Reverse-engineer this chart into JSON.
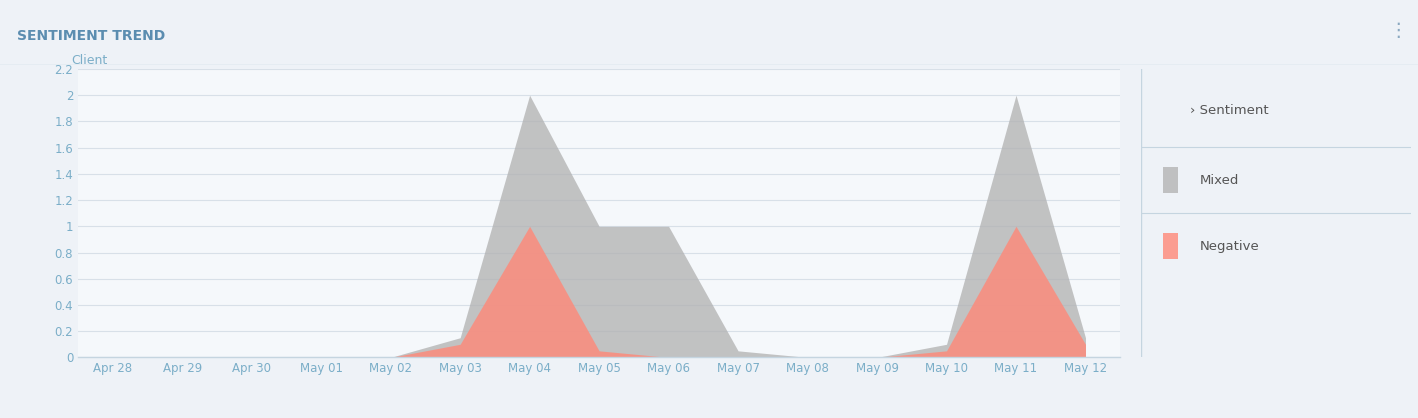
{
  "title": "SENTIMENT TREND",
  "client_label": "Client",
  "background_color": "#eef2f7",
  "plot_background": "#ffffff",
  "dates": [
    "Apr 28",
    "Apr 29",
    "Apr 30",
    "May 01",
    "May 02",
    "May 03",
    "May 04",
    "May 05",
    "May 06",
    "May 07",
    "May 08",
    "May 09",
    "May 10",
    "May 11",
    "May 12"
  ],
  "mixed_values": [
    0,
    0,
    0,
    0,
    0,
    0.15,
    2.0,
    1.0,
    1.0,
    0.05,
    0,
    0,
    0.1,
    2.0,
    0.15
  ],
  "negative_values": [
    0,
    0,
    0,
    0,
    0,
    0.1,
    1.0,
    0.05,
    0,
    0,
    0,
    0,
    0.05,
    1.0,
    0.1
  ],
  "mixed_color": "#b0b0b0",
  "negative_color": "#ff8878",
  "mixed_alpha": 0.75,
  "negative_alpha": 0.8,
  "ylim": [
    0,
    2.2
  ],
  "yticks": [
    0,
    0.2,
    0.4,
    0.6,
    0.8,
    1.0,
    1.2,
    1.4,
    1.6,
    1.8,
    2.0,
    2.2
  ],
  "ytick_labels": [
    "0",
    "0.2",
    "0.4",
    "0.6",
    "0.8",
    "1",
    "1.2",
    "1.4",
    "1.6",
    "1.8",
    "2",
    "2.2"
  ],
  "grid_color": "#d8e0e8",
  "title_color": "#5b8db0",
  "title_fontsize": 10,
  "axis_tick_color": "#7baec8",
  "tick_fontsize": 8.5,
  "legend_title": "Sentiment",
  "legend_mixed": "Mixed",
  "legend_negative": "Negative",
  "legend_text_color": "#555555",
  "separator_color": "#c5d5e0",
  "header_bg": "#eef2f7",
  "plot_bg": "#f5f8fb"
}
